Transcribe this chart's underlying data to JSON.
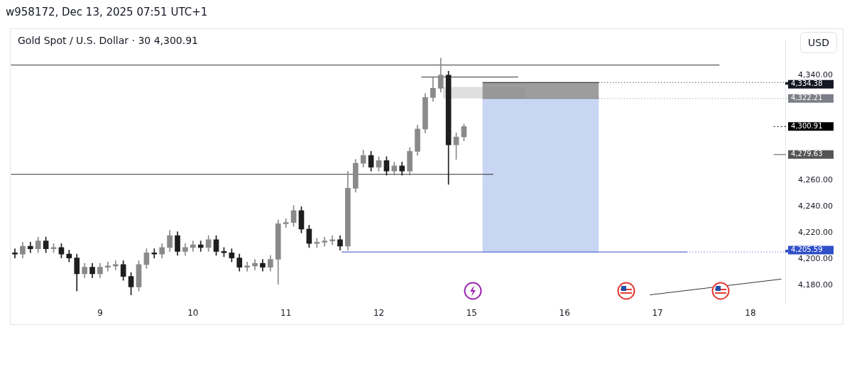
{
  "chart_data": {
    "type": "candlestick",
    "title": "Gold Spot / U.S. Dollar · 30 4,300.91",
    "subtitle": "w958172, Dec 13, 2025 07:51 UTC+1",
    "categories": [
      null,
      null,
      null,
      null,
      null,
      null,
      null,
      null,
      null,
      null,
      null,
      "9",
      null,
      null,
      null,
      null,
      null,
      null,
      null,
      null,
      null,
      null,
      null,
      "10",
      null,
      null,
      null,
      null,
      null,
      null,
      null,
      null,
      null,
      null,
      null,
      "11",
      null,
      null,
      null,
      null,
      null,
      null,
      null,
      null,
      null,
      null,
      null,
      "12",
      null,
      null,
      null,
      null,
      null,
      null,
      null,
      null,
      null,
      null,
      null,
      "15",
      null,
      null,
      null,
      null,
      null,
      null,
      null,
      null,
      null,
      null,
      null,
      "16",
      null,
      null,
      null,
      null,
      null,
      null,
      null,
      null,
      null,
      null,
      null,
      "17",
      null,
      null,
      null,
      null,
      null,
      null,
      null,
      null,
      null,
      null,
      null,
      "18",
      null,
      null,
      null,
      null
    ],
    "colors": [
      "#1e1e1e",
      "#8a8a8a",
      "#1e1e1e",
      "#8a8a8a",
      "#1e1e1e",
      "#8a8a8a",
      "#1e1e1e",
      "#1e1e1e",
      "#1e1e1e",
      "#8a8a8a",
      "#1e1e1e",
      "#8a8a8a",
      "#8a8a8a",
      "#8a8a8a",
      "#1e1e1e",
      "#1e1e1e",
      "#8a8a8a",
      "#8a8a8a",
      "#1e1e1e",
      "#8a8a8a",
      "#8a8a8a",
      "#1e1e1e",
      "#8a8a8a",
      "#8a8a8a",
      "#1e1e1e",
      "#8a8a8a",
      "#1e1e1e",
      "#1e1e1e",
      "#1e1e1e",
      "#1e1e1e",
      "#8a8a8a",
      "#8a8a8a",
      "#1e1e1e",
      "#8a8a8a",
      "#8a8a8a",
      "#8a8a8a",
      "#8a8a8a",
      "#1e1e1e",
      "#1e1e1e",
      "#8a8a8a",
      "#8a8a8a",
      "#8a8a8a",
      "#1e1e1e",
      "#8a8a8a",
      "#8a8a8a",
      "#8a8a8a",
      "#1e1e1e",
      "#8a8a8a",
      "#1e1e1e",
      "#8a8a8a",
      "#1e1e1e",
      "#8a8a8a",
      "#8a8a8a",
      "#8a8a8a",
      "#8a8a8a",
      "#8a8a8a",
      "#1e1e1e",
      "#8a8a8a",
      "#8a8a8a",
      null,
      null,
      null,
      null,
      null,
      null,
      null,
      null,
      null,
      null,
      null,
      null,
      null,
      null,
      null,
      null,
      null,
      null,
      null,
      null,
      null,
      null,
      null,
      null,
      null,
      null,
      null,
      null,
      null,
      null,
      null,
      null,
      null,
      null,
      null,
      null,
      null,
      null,
      null,
      null,
      null
    ],
    "ohlc": [
      [
        4205,
        4208,
        4201,
        4204
      ],
      [
        4204,
        4213,
        4201,
        4210
      ],
      [
        4210,
        4213,
        4205,
        4208
      ],
      [
        4208,
        4217,
        4205,
        4214
      ],
      [
        4214,
        4217,
        4205,
        4208
      ],
      [
        4208,
        4212,
        4205,
        4209
      ],
      [
        4209,
        4212,
        4201,
        4204
      ],
      [
        4204,
        4207,
        4198,
        4201
      ],
      [
        4201,
        4204,
        4176,
        4189
      ],
      [
        4189,
        4197,
        4186,
        4194
      ],
      [
        4194,
        4197,
        4186,
        4189
      ],
      [
        4189,
        4197,
        4186,
        4194
      ],
      [
        4194,
        4198,
        4191,
        4195
      ],
      [
        4195,
        4199,
        4192,
        4196
      ],
      [
        4196,
        4199,
        4184,
        4187
      ],
      [
        4187,
        4190,
        4173,
        4179
      ],
      [
        4179,
        4199,
        4176,
        4196
      ],
      [
        4196,
        4208,
        4193,
        4205
      ],
      [
        4205,
        4208,
        4201,
        4204
      ],
      [
        4204,
        4212,
        4201,
        4209
      ],
      [
        4209,
        4222,
        4206,
        4218
      ],
      [
        4218,
        4221,
        4203,
        4206
      ],
      [
        4206,
        4212,
        4203,
        4209
      ],
      [
        4209,
        4214,
        4206,
        4211
      ],
      [
        4211,
        4214,
        4206,
        4209
      ],
      [
        4209,
        4218,
        4206,
        4215
      ],
      [
        4215,
        4218,
        4203,
        4206
      ],
      [
        4206,
        4209,
        4202,
        4205
      ],
      [
        4205,
        4208,
        4198,
        4201
      ],
      [
        4201,
        4204,
        4191,
        4194
      ],
      [
        4194,
        4198,
        4191,
        4195
      ],
      [
        4195,
        4200,
        4192,
        4197
      ],
      [
        4197,
        4200,
        4191,
        4194
      ],
      [
        4194,
        4203,
        4191,
        4200
      ],
      [
        4200,
        4230,
        4181,
        4227
      ],
      [
        4227,
        4231,
        4224,
        4228
      ],
      [
        4228,
        4241,
        4225,
        4237
      ],
      [
        4237,
        4240,
        4220,
        4223
      ],
      [
        4223,
        4226,
        4209,
        4212
      ],
      [
        4212,
        4216,
        4209,
        4213
      ],
      [
        4213,
        4217,
        4210,
        4214
      ],
      [
        4214,
        4218,
        4211,
        4215
      ],
      [
        4215,
        4218,
        4207,
        4210
      ],
      [
        4210,
        4267,
        4207,
        4254
      ],
      [
        4254,
        4276,
        4251,
        4273
      ],
      [
        4273,
        4283,
        4270,
        4279
      ],
      [
        4279,
        4282,
        4267,
        4270
      ],
      [
        4270,
        4278,
        4267,
        4275
      ],
      [
        4275,
        4278,
        4264,
        4267
      ],
      [
        4267,
        4274,
        4264,
        4271
      ],
      [
        4271,
        4274,
        4264,
        4267
      ],
      [
        4267,
        4285,
        4264,
        4282
      ],
      [
        4282,
        4302,
        4279,
        4299
      ],
      [
        4299,
        4326,
        4296,
        4323
      ],
      [
        4323,
        4338,
        4320,
        4330
      ],
      [
        4330,
        4353,
        4327,
        4340
      ],
      [
        4340,
        4343,
        4257,
        4287
      ],
      [
        4287,
        4296,
        4276,
        4293
      ],
      [
        4293,
        4303,
        4290,
        4300.91
      ],
      null,
      null,
      null,
      null,
      null,
      null,
      null,
      null,
      null,
      null,
      null,
      null,
      null,
      null,
      null,
      null,
      null,
      null,
      null,
      null,
      null,
      null,
      null,
      null,
      null,
      null,
      null,
      null,
      null,
      null,
      null,
      null,
      null,
      null,
      null,
      null,
      null,
      null,
      null,
      null,
      null
    ],
    "series": [
      {
        "type": "line",
        "color": "#333333",
        "values": [
          null,
          null,
          null,
          null,
          null,
          null,
          null,
          null,
          null,
          null,
          null,
          null,
          null,
          null,
          null,
          null,
          null,
          null,
          null,
          null,
          null,
          null,
          null,
          null,
          null,
          null,
          null,
          null,
          null,
          null,
          null,
          null,
          null,
          null,
          null,
          null,
          null,
          null,
          null,
          null,
          null,
          null,
          null,
          null,
          null,
          null,
          null,
          null,
          null,
          null,
          null,
          null,
          null,
          null,
          null,
          null,
          null,
          null,
          null,
          null,
          null,
          null,
          null,
          null,
          null,
          null,
          null,
          null,
          null,
          null,
          null,
          null,
          null,
          null,
          null,
          null,
          null,
          null,
          null,
          null,
          null,
          null,
          4173,
          null,
          null,
          null,
          null,
          null,
          null,
          null,
          null,
          null,
          null,
          null,
          null,
          null,
          null,
          null,
          null,
          4185
        ]
      }
    ],
    "ylim": [
      4166,
      4366
    ],
    "yticks": [
      {
        "value": 4180,
        "label": "4,180.00"
      },
      {
        "value": 4200,
        "label": "4,200.00"
      },
      {
        "value": 4220,
        "label": "4,220.00"
      },
      {
        "value": 4240,
        "label": "4,240.00"
      },
      {
        "value": 4260,
        "label": "4,260.00"
      },
      {
        "value": 4340,
        "label": "4,340.00"
      }
    ],
    "ref_lines": [
      {
        "axis": "y",
        "value": 4347.6,
        "color": "#333333"
      },
      {
        "axis": "y",
        "value": 4338.5,
        "color": "#333333"
      },
      {
        "axis": "y",
        "value": 4264.6,
        "color": "#333333"
      },
      {
        "axis": "y",
        "value": 4205.59,
        "label": "4,205.59",
        "color": "#2f4fc8"
      },
      {
        "axis": "y",
        "value": 4334.38,
        "label": "4,334.38",
        "color": "#131722"
      },
      {
        "axis": "y",
        "value": 4322.21,
        "label": "4,322.21",
        "color": "#7c7f88"
      },
      {
        "axis": "y",
        "value": 4300.91,
        "label": "4,300.91",
        "color": "#000000",
        "line_style": "dotted"
      },
      {
        "axis": "y",
        "value": 4279.63,
        "label": "4,279.63",
        "color": "#555555"
      }
    ],
    "bands": [
      {
        "axis": "y",
        "from": 4205.59,
        "to": 4322.21,
        "color": "#c5d3f2"
      },
      {
        "axis": "y",
        "from": 4322.21,
        "to": 4331,
        "color": "#dcdcdc"
      },
      {
        "axis": "y",
        "from": 4322.21,
        "to": 4334.38,
        "color": "#8c8c8c"
      }
    ],
    "annotations": [
      "USD"
    ],
    "grid": false,
    "legend": false
  }
}
